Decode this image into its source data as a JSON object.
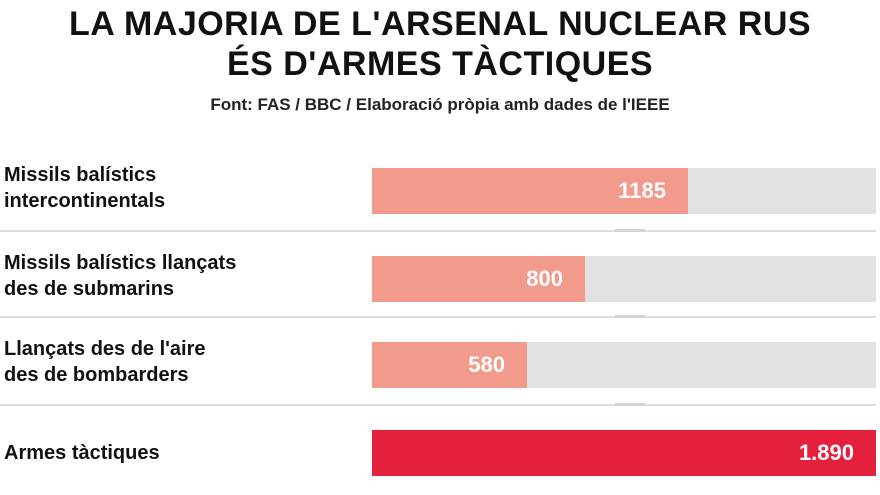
{
  "title_line1": "LA MAJORIA DE L'ARSENAL NUCLEAR RUS",
  "title_line2": "ÉS D'ARMES TÀCTIQUES",
  "source": "Font: FAS / BBC / Elaboració pròpia amb dades de l'IEEE",
  "colors": {
    "strategic_bar": "#f29a8c",
    "tactical_bar": "#e5203c",
    "track": "#e2e2e2"
  },
  "chart_data": {
    "type": "bar",
    "orientation": "horizontal",
    "title": "LA MAJORIA DE L'ARSENAL NUCLEAR RUS ÉS D'ARMES TÀCTIQUES",
    "categories": [
      "Missils balístics intercontinentals",
      "Missils balístics llançats des de submarins",
      "Llançats des de l'aire des de bombarders",
      "Armes tàctiques"
    ],
    "values": [
      1185,
      800,
      580,
      1890
    ],
    "xlim": [
      0,
      1890
    ],
    "grid": false,
    "rows": [
      {
        "label_lines": [
          "Missils balístics",
          "intercontinentals"
        ],
        "value": 1185,
        "value_label": "1185",
        "highlight": false
      },
      {
        "label_lines": [
          "Missils balístics llançats",
          "des de submarins"
        ],
        "value": 800,
        "value_label": "800",
        "highlight": false
      },
      {
        "label_lines": [
          "Llançats des de l'aire",
          "des de bombarders"
        ],
        "value": 580,
        "value_label": "580",
        "highlight": false
      },
      {
        "label_lines": [
          "Armes tàctiques"
        ],
        "value": 1890,
        "value_label": "1.890",
        "highlight": true
      }
    ]
  }
}
